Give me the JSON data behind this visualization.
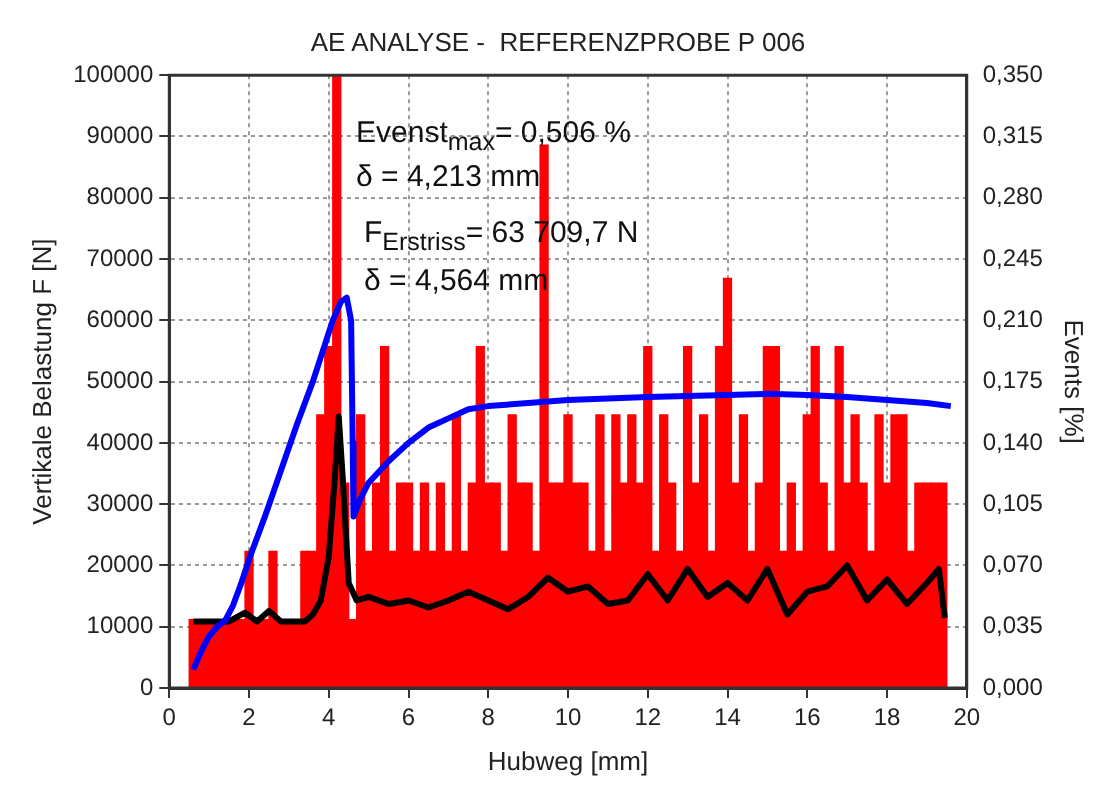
{
  "chart_data": {
    "type": "line",
    "title": "AE ANALYSE -  REFERENZPROBE P 006",
    "xlabel": "Hubweg [mm]",
    "ylabel": "Vertikale Belastung F [N]",
    "y2label": "Events [%]",
    "annotations": [
      "Evenst$_{max}$= 0,506 %",
      "δ = 4,213 mm",
      "F$_{Erstriss}$= 63 709,7 N",
      "δ = 4,564 mm"
    ],
    "xlim": [
      0,
      20
    ],
    "xticks": [
      0,
      2,
      4,
      6,
      8,
      10,
      12,
      14,
      16,
      18,
      20
    ],
    "ylim": [
      0,
      100000
    ],
    "yticks": [
      0,
      10000,
      20000,
      30000,
      40000,
      50000,
      60000,
      70000,
      80000,
      90000,
      100000
    ],
    "y2lim": [
      0,
      0.35
    ],
    "y2ticks": [
      {
        "value": 0,
        "label": "0,000"
      },
      {
        "value": 0.035,
        "label": "0,035"
      },
      {
        "value": 0.07,
        "label": "0,070"
      },
      {
        "value": 0.105,
        "label": "0,105"
      },
      {
        "value": 0.14,
        "label": "0,140"
      },
      {
        "value": 0.175,
        "label": "0,175"
      },
      {
        "value": 0.21,
        "label": "0,210"
      },
      {
        "value": 0.245,
        "label": "0,245"
      },
      {
        "value": 0.28,
        "label": "0,280"
      },
      {
        "value": 0.315,
        "label": "0,315"
      },
      {
        "value": 0.35,
        "label": "0,350"
      }
    ],
    "grid": true,
    "series": [
      {
        "type": "bar",
        "axis": "y2",
        "color": "#ff0000",
        "x": [
          0.6,
          0.8,
          1.0,
          1.2,
          1.4,
          1.6,
          1.8,
          2.0,
          2.2,
          2.4,
          2.6,
          2.8,
          3.0,
          3.2,
          3.4,
          3.6,
          3.8,
          4.0,
          4.2,
          4.4,
          4.6,
          4.8,
          5.0,
          5.2,
          5.4,
          5.6,
          5.8,
          6.0,
          6.2,
          6.4,
          6.6,
          6.8,
          7.0,
          7.2,
          7.4,
          7.6,
          7.8,
          8.0,
          8.2,
          8.4,
          8.6,
          8.8,
          9.0,
          9.2,
          9.4,
          9.6,
          9.8,
          10.0,
          10.2,
          10.4,
          10.6,
          10.8,
          11.0,
          11.2,
          11.4,
          11.6,
          11.8,
          12.0,
          12.2,
          12.4,
          12.6,
          12.8,
          13.0,
          13.2,
          13.4,
          13.6,
          13.8,
          14.0,
          14.2,
          14.4,
          14.6,
          14.8,
          15.0,
          15.2,
          15.4,
          15.6,
          15.8,
          16.0,
          16.2,
          16.4,
          16.6,
          16.8,
          17.0,
          17.2,
          17.4,
          17.6,
          17.8,
          18.0,
          18.2,
          18.4,
          18.6,
          18.8,
          19.0,
          19.2,
          19.4
        ],
        "values": [
          0.039,
          0.039,
          0.039,
          0.039,
          0.039,
          0.039,
          0.039,
          0.078,
          0.039,
          0.039,
          0.078,
          0.039,
          0.039,
          0.039,
          0.078,
          0.078,
          0.156,
          0.195,
          0.35,
          0.117,
          0.039,
          0.156,
          0.078,
          0.117,
          0.195,
          0.078,
          0.117,
          0.117,
          0.078,
          0.117,
          0.078,
          0.117,
          0.078,
          0.156,
          0.078,
          0.117,
          0.195,
          0.117,
          0.117,
          0.078,
          0.156,
          0.117,
          0.117,
          0.078,
          0.31,
          0.117,
          0.117,
          0.156,
          0.117,
          0.117,
          0.078,
          0.156,
          0.078,
          0.156,
          0.117,
          0.156,
          0.117,
          0.195,
          0.078,
          0.156,
          0.117,
          0.078,
          0.195,
          0.117,
          0.156,
          0.078,
          0.195,
          0.234,
          0.117,
          0.156,
          0.078,
          0.117,
          0.195,
          0.195,
          0.078,
          0.117,
          0.078,
          0.156,
          0.195,
          0.117,
          0.078,
          0.195,
          0.117,
          0.156,
          0.117,
          0.078,
          0.156,
          0.117,
          0.156,
          0.156,
          0.078,
          0.117,
          0.117,
          0.117,
          0.117
        ]
      },
      {
        "axis": "y",
        "color": "#0000ff",
        "x": [
          0.6,
          0.8,
          1.0,
          1.2,
          1.4,
          1.6,
          1.8,
          2.0,
          2.4,
          2.8,
          3.2,
          3.6,
          3.9,
          4.1,
          4.3,
          4.45,
          4.56,
          4.6,
          4.62,
          4.65,
          4.8,
          5.0,
          5.5,
          6.0,
          6.5,
          7.0,
          7.5,
          8.0,
          9.0,
          10.0,
          12.0,
          14.0,
          15.0,
          16.0,
          17.0,
          18.0,
          19.0,
          19.6
        ],
        "values": [
          3000,
          6000,
          8500,
          10000,
          11000,
          13500,
          17000,
          21000,
          28000,
          35500,
          43000,
          50000,
          56000,
          60000,
          63000,
          63700,
          60000,
          40000,
          28000,
          28500,
          31000,
          33500,
          37000,
          40000,
          42500,
          44000,
          45500,
          46000,
          46500,
          47000,
          47500,
          47800,
          48000,
          47800,
          47500,
          47000,
          46500,
          46000
        ]
      },
      {
        "axis": "y2",
        "color": "#000000",
        "x": [
          0.6,
          1.0,
          1.5,
          1.9,
          2.2,
          2.5,
          2.8,
          3.4,
          3.6,
          3.8,
          4.0,
          4.15,
          4.25,
          4.35,
          4.5,
          4.7,
          5.0,
          5.5,
          6.0,
          6.5,
          7.0,
          7.5,
          8.0,
          8.5,
          9.0,
          9.5,
          10.0,
          10.5,
          11.0,
          11.5,
          12.0,
          12.5,
          13.0,
          13.5,
          14.0,
          14.5,
          15.0,
          15.5,
          16.0,
          16.5,
          17.0,
          17.5,
          18.0,
          18.5,
          19.0,
          19.3,
          19.45
        ],
        "values": [
          0.038,
          0.038,
          0.038,
          0.043,
          0.038,
          0.044,
          0.038,
          0.038,
          0.042,
          0.05,
          0.075,
          0.12,
          0.155,
          0.12,
          0.06,
          0.05,
          0.052,
          0.048,
          0.05,
          0.046,
          0.05,
          0.055,
          0.05,
          0.045,
          0.052,
          0.063,
          0.055,
          0.058,
          0.048,
          0.05,
          0.065,
          0.05,
          0.068,
          0.052,
          0.06,
          0.05,
          0.068,
          0.042,
          0.055,
          0.058,
          0.07,
          0.05,
          0.062,
          0.048,
          0.06,
          0.068,
          0.04
        ]
      }
    ]
  }
}
